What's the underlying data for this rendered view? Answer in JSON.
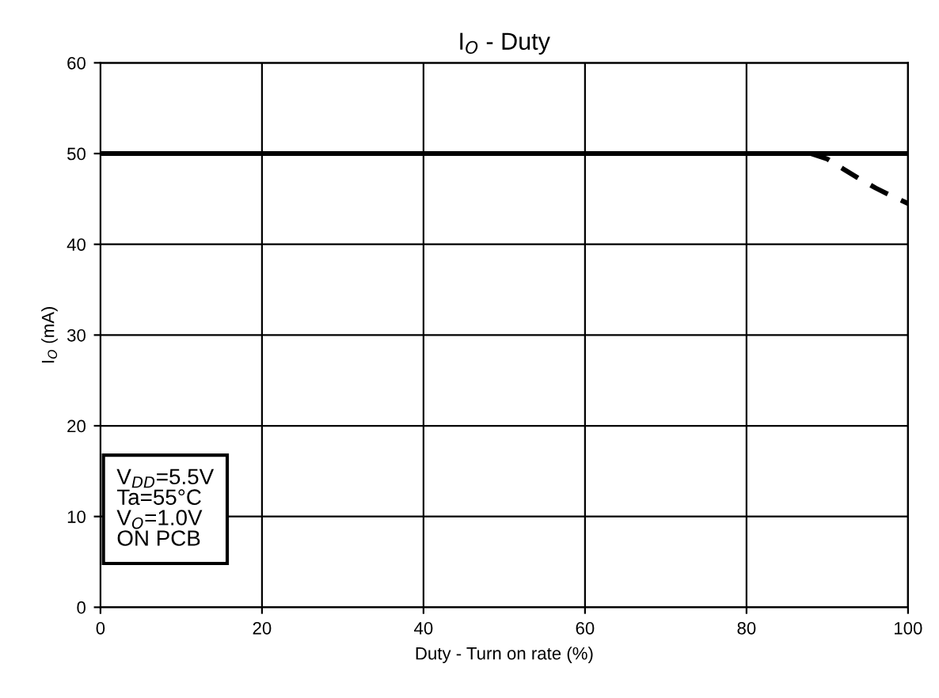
{
  "chart_data": {
    "type": "line",
    "title": "I$_{O}$ - Duty",
    "xlabel": "Duty - Turn on rate (%)",
    "ylabel": "I$_{O}$ (mA)",
    "xlim": [
      0,
      100
    ],
    "xticks": [
      0,
      20,
      40,
      60,
      80,
      100
    ],
    "ylim": [
      0,
      60
    ],
    "yticks": [
      0,
      10,
      20,
      30,
      40,
      50,
      60
    ],
    "grid": true,
    "annotations": [
      "V$_{DD}$=5.5V\nTa=55°C\nV$_{O}$=1.0V\nON PCB"
    ],
    "series": [
      {
        "color": "#000000",
        "line_style": "solid",
        "x": [
          0,
          100
        ],
        "values": [
          50,
          50
        ]
      },
      {
        "color": "#000000",
        "line_style": "dashed",
        "x": [
          88,
          90,
          92,
          94,
          96,
          98,
          100
        ],
        "values": [
          50,
          49.4,
          48.3,
          47.2,
          46.2,
          45.3,
          44.5
        ]
      }
    ]
  }
}
